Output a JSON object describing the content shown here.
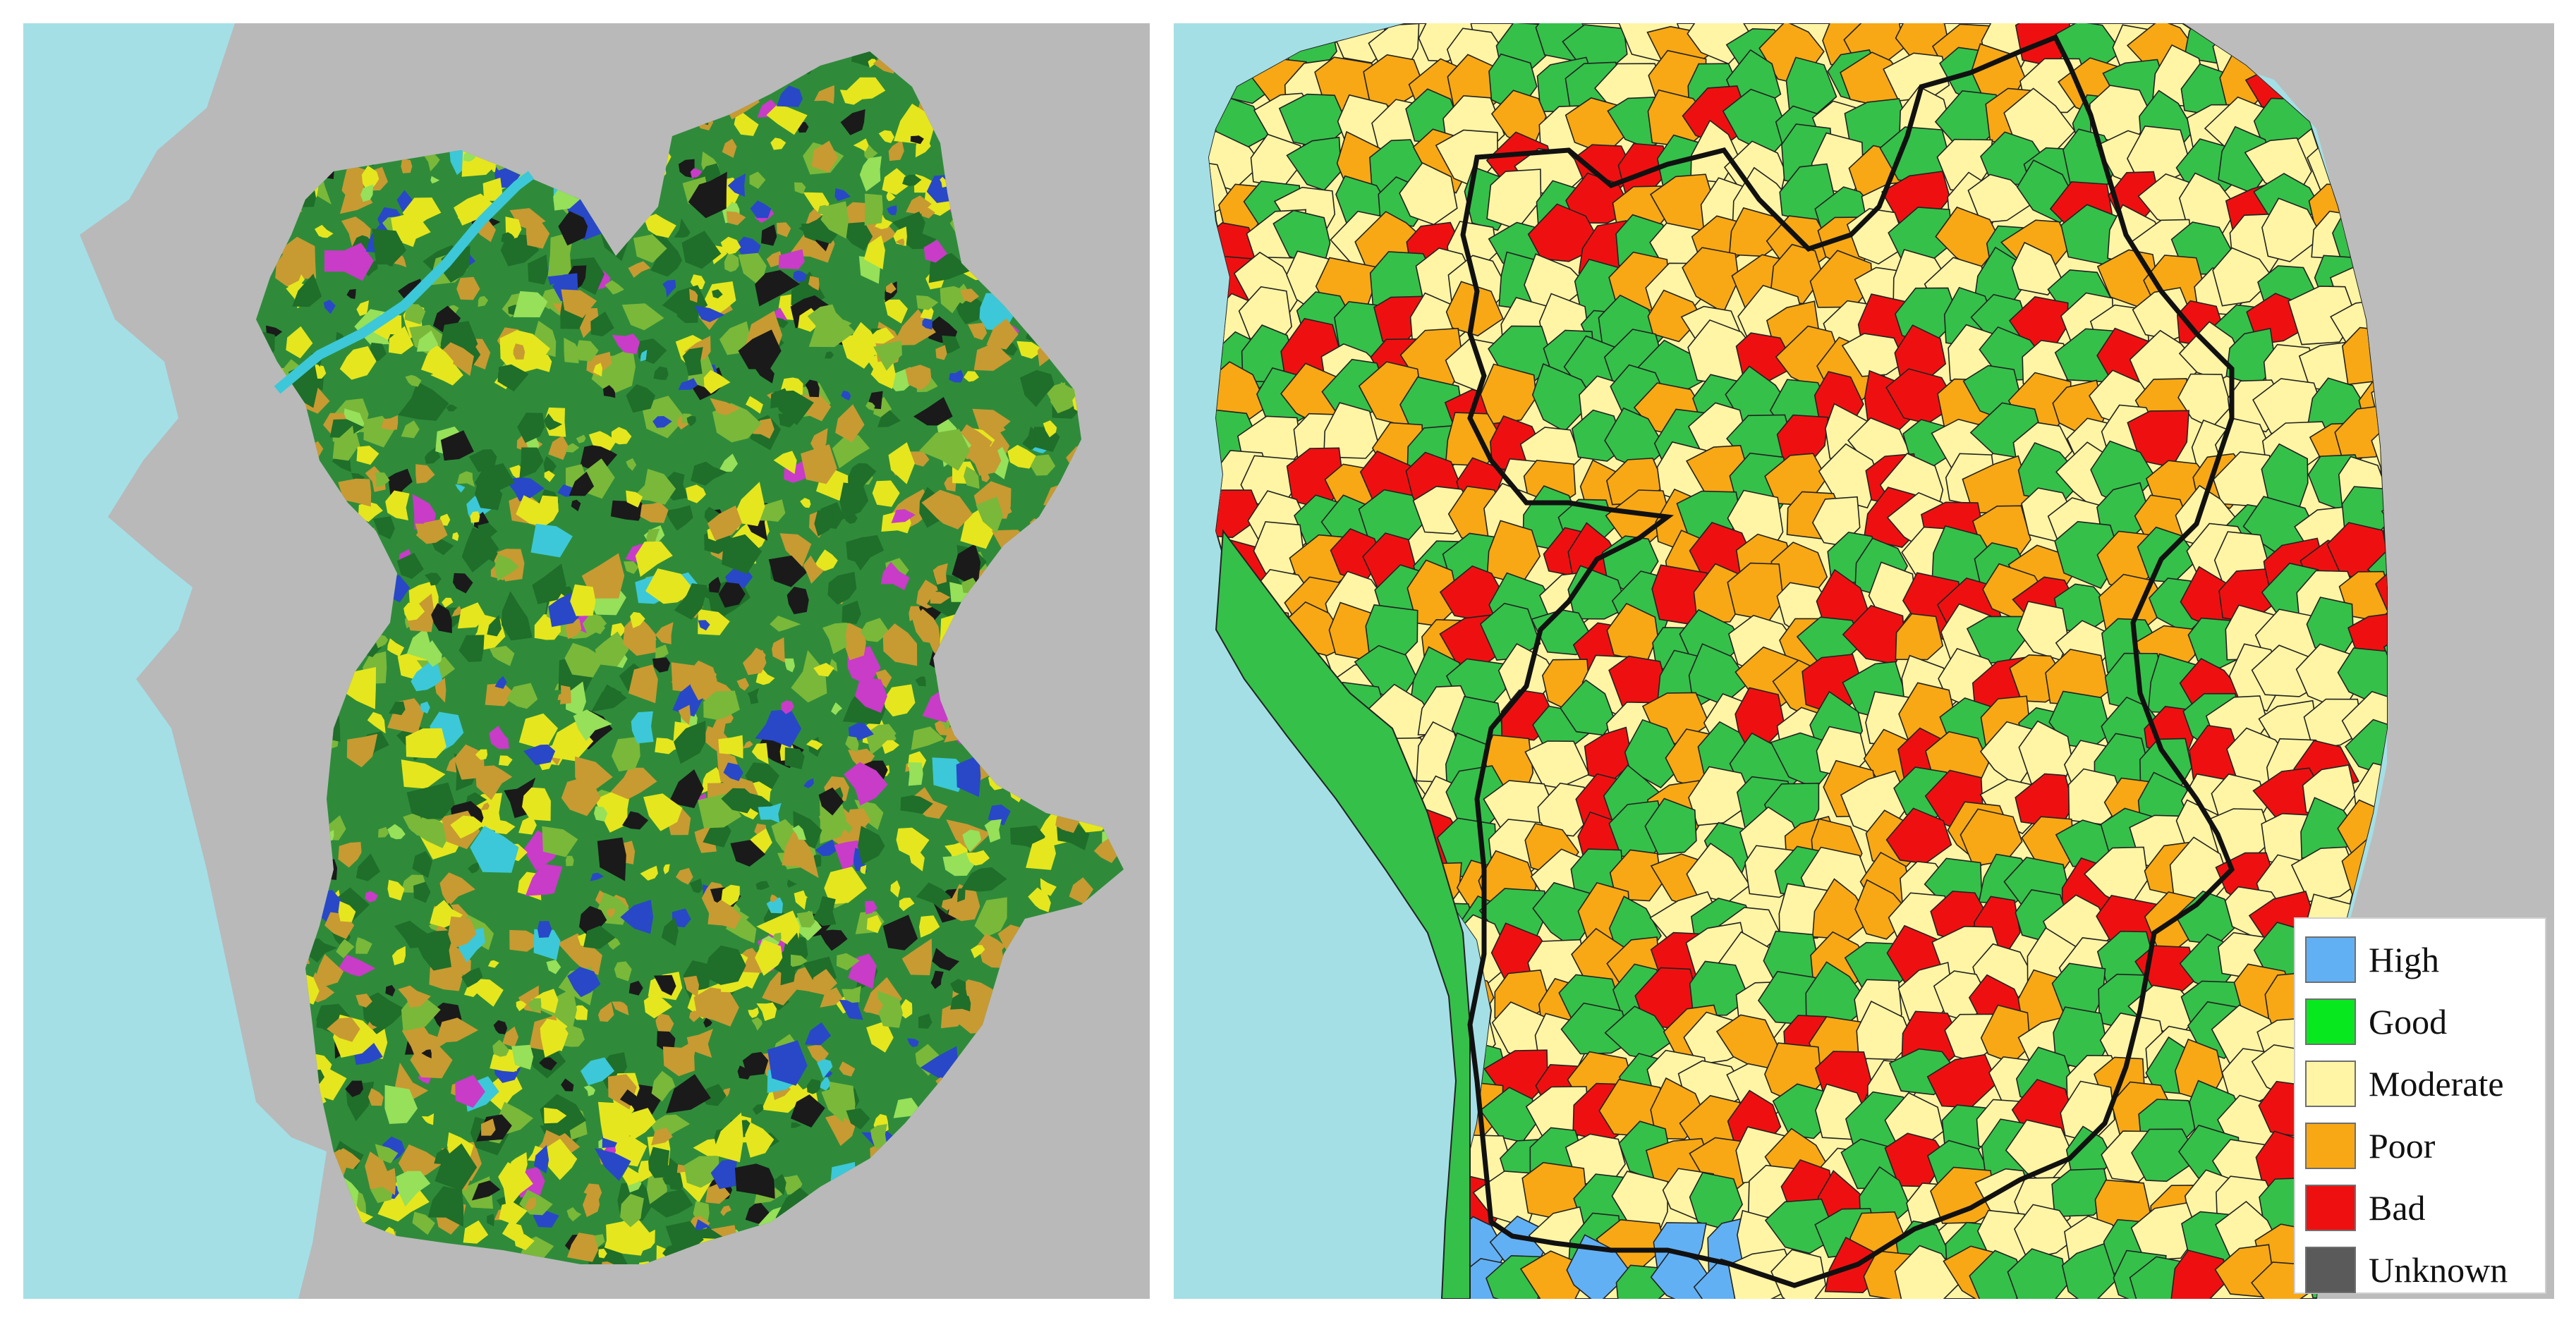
{
  "left_map": {
    "colors": {
      "sea": "#a4dfe6",
      "land_outside": "#b9b9b9",
      "region_base": "#2f8b3a",
      "patches": [
        "#1f6e2a",
        "#7ab83a",
        "#e6e61e",
        "#c89a32",
        "#1a1a1a",
        "#2848c8",
        "#3cc8d8",
        "#c83cc8",
        "#96e05a"
      ]
    }
  },
  "right_map": {
    "colors": {
      "sea": "#a4dfe6",
      "land_outside": "#bcbcbc",
      "boundary": "#111111",
      "catchment_lines": "#222222"
    }
  },
  "legend": {
    "items": [
      {
        "label": "High",
        "color": "#62b0f4"
      },
      {
        "label": "Good",
        "color": "#08e81f"
      },
      {
        "label": "Moderate",
        "color": "#fff5a4"
      },
      {
        "label": "Poor",
        "color": "#f7a814"
      },
      {
        "label": "Bad",
        "color": "#ee1010"
      },
      {
        "label": "Unknown",
        "color": "#5a5a5a"
      }
    ]
  }
}
